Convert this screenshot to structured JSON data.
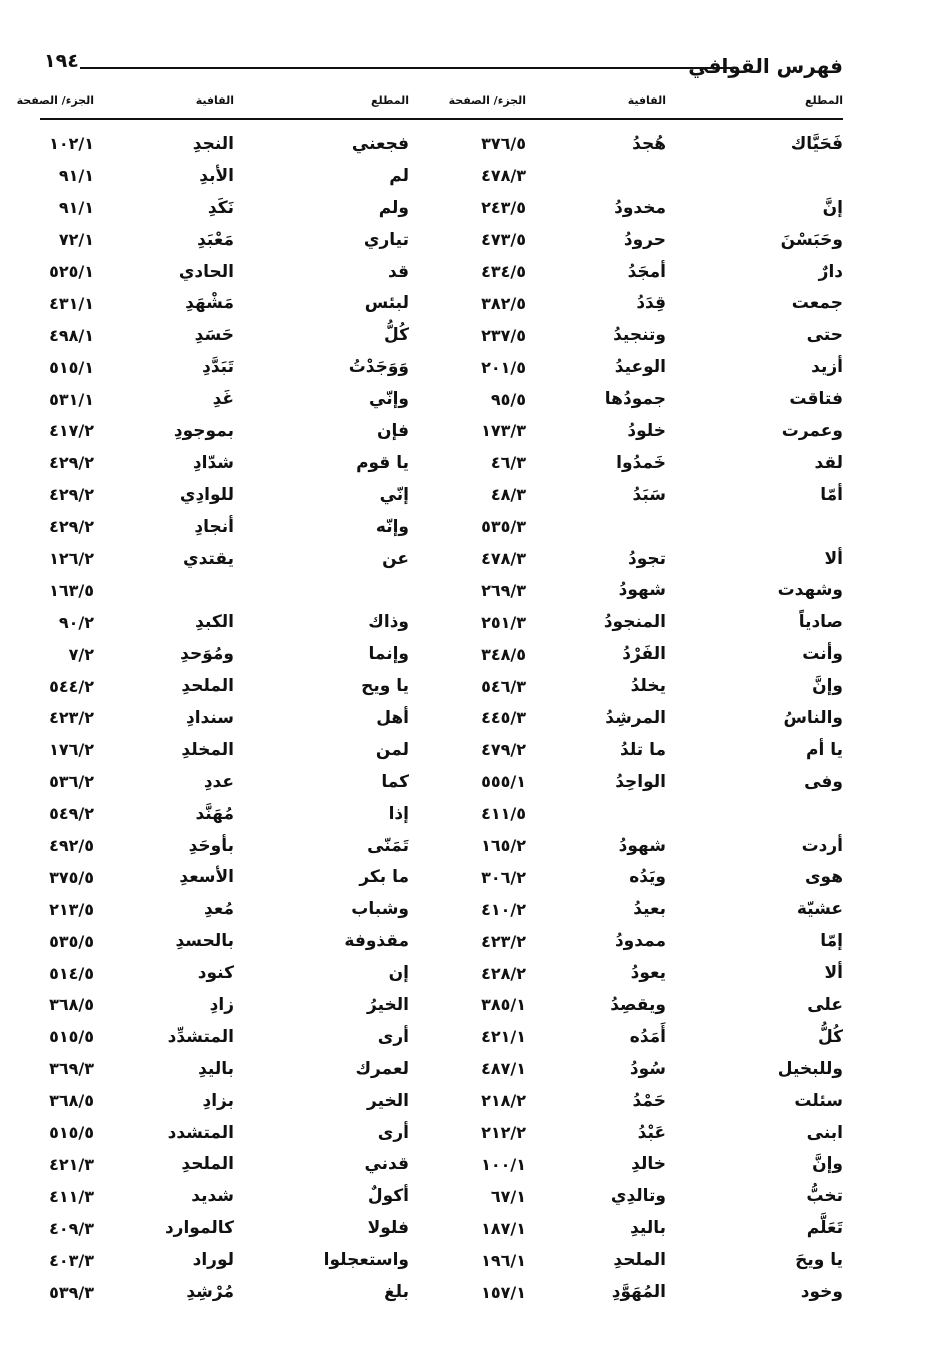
{
  "header": {
    "title": "فهرس القوافي",
    "page_number": "١٩٤"
  },
  "columns": [
    "المطلع",
    "القافية",
    "الجزء/ الصفحة",
    "المطلع",
    "القافية",
    "الجزء/ الصفحة"
  ],
  "rows": [
    [
      "فَحَيَّاك",
      "هُجدُ",
      "٣٧٦/٥",
      "فجعني",
      "النجدِ",
      "١٠٢/١"
    ],
    [
      "",
      "",
      "٤٧٨/٣",
      "لم",
      "الأبدِ",
      "٩١/١"
    ],
    [
      "إنَّ",
      "مخدودُ",
      "٢٤٣/٥",
      "ولم",
      "نَكَدِ",
      "٩١/١"
    ],
    [
      "وحَبَسْنَ",
      "حرودُ",
      "٤٧٣/٥",
      "تياري",
      "مَعْبَدِ",
      "٧٢/١"
    ],
    [
      "دارٌ",
      "أمجَدُ",
      "٤٣٤/٥",
      "قد",
      "الحادي",
      "٥٢٥/١"
    ],
    [
      "جمعت",
      "قِدَدُ",
      "٣٨٢/٥",
      "لبئس",
      "مَشْهَدِ",
      "٤٣١/١"
    ],
    [
      "حتى",
      "وتنجيدُ",
      "٢٣٧/٥",
      "كُلُّ",
      "حَسَدِ",
      "٤٩٨/١"
    ],
    [
      "أزيد",
      "الوعيدُ",
      "٢٠١/٥",
      "وَوَجَدْتُ",
      "تَبَدَّدِ",
      "٥١٥/١"
    ],
    [
      "فتاقت",
      "جمودُها",
      "٩٥/٥",
      "وإنّي",
      "غَدِ",
      "٥٣١/١"
    ],
    [
      "وعمرت",
      "خلودُ",
      "١٧٣/٣",
      "فإن",
      "بموجودِ",
      "٤١٧/٢"
    ],
    [
      "لقد",
      "خَمدُوا",
      "٤٦/٣",
      "يا قوم",
      "شدّادِ",
      "٤٢٩/٢"
    ],
    [
      "أمّا",
      "سَبَدُ",
      "٤٨/٣",
      "إنّي",
      "للوادِي",
      "٤٢٩/٢"
    ],
    [
      "",
      "",
      "٥٣٥/٣",
      "وإنّه",
      "أنجادِ",
      "٤٢٩/٢"
    ],
    [
      "ألا",
      "تجودُ",
      "٤٧٨/٣",
      "عن",
      "يقتدي",
      "١٢٦/٢"
    ],
    [
      "وشهدت",
      "شهودُ",
      "٢٦٩/٣",
      "",
      "",
      "١٦٣/٥"
    ],
    [
      "صادياً",
      "المنجودُ",
      "٢٥١/٣",
      "وذاك",
      "الكبدِ",
      "٩٠/٢"
    ],
    [
      "وأنت",
      "الفَرْدُ",
      "٣٤٨/٥",
      "وإنما",
      "ومُوَحدِ",
      "٧/٢"
    ],
    [
      "وإنَّ",
      "يخلدُ",
      "٥٤٦/٣",
      "يا ويح",
      "الملحدِ",
      "٥٤٤/٢"
    ],
    [
      "والناسُ",
      "المرشِدُ",
      "٤٤٥/٣",
      "أهل",
      "سندادِ",
      "٤٢٣/٢"
    ],
    [
      "يا أم",
      "ما تلدُ",
      "٤٧٩/٢",
      "لمن",
      "المخلدِ",
      "١٧٦/٢"
    ],
    [
      "وفى",
      "الواحِدُ",
      "٥٥٥/١",
      "كما",
      "عددِ",
      "٥٣٦/٢"
    ],
    [
      "",
      "",
      "٤١١/٥",
      "إذا",
      "مُهَنَّد",
      "٥٤٩/٢"
    ],
    [
      "أردت",
      "شهودُ",
      "١٦٥/٢",
      "تَمَنّى",
      "بأوحَدِ",
      "٤٩٢/٥"
    ],
    [
      "هوى",
      "ويَدُه",
      "٣٠٦/٢",
      "ما بكر",
      "الأسعدِ",
      "٣٧٥/٥"
    ],
    [
      "عشيّة",
      "بعيدُ",
      "٤١٠/٢",
      "وشباب",
      "مُعدِ",
      "٢١٣/٥"
    ],
    [
      "إمّا",
      "ممدودُ",
      "٤٢٣/٢",
      "مقذوفة",
      "بالحسدِ",
      "٥٣٥/٥"
    ],
    [
      "ألا",
      "يعودُ",
      "٤٢٨/٢",
      "إن",
      "كنود",
      "٥١٤/٥"
    ],
    [
      "على",
      "ويقصِدُ",
      "٣٨٥/١",
      "الخيرُ",
      "زادِ",
      "٣٦٨/٥"
    ],
    [
      "كُلُّ",
      "أَمَدُه",
      "٤٢١/١",
      "أرى",
      "المتشدِّد",
      "٥١٥/٥"
    ],
    [
      "وللبخيل",
      "سُودُ",
      "٤٨٧/١",
      "لعمرك",
      "باليدِ",
      "٣٦٩/٣"
    ],
    [
      "سئلت",
      "حَمْدُ",
      "٢١٨/٢",
      "الخير",
      "بزادِ",
      "٣٦٨/٥"
    ],
    [
      "ابنى",
      "عَبْدُ",
      "٢١٢/٢",
      "أرى",
      "المتشدد",
      "٥١٥/٥"
    ],
    [
      "وإنَّ",
      "خالدِ",
      "١٠٠/١",
      "قدني",
      "الملحدِ",
      "٤٢١/٣"
    ],
    [
      "تخبُّ",
      "وتالدِي",
      "٦٧/١",
      "أكولٌ",
      "شديد",
      "٤١١/٣"
    ],
    [
      "تَعَلَّم",
      "باليدِ",
      "١٨٧/١",
      "فلولا",
      "كالموارد",
      "٤٠٩/٣"
    ],
    [
      "يا ويحَ",
      "الملحدِ",
      "١٩٦/١",
      "واستعجلوا",
      "لوراد",
      "٤٠٣/٣"
    ],
    [
      "وخود",
      "المُهَوَّدِ",
      "١٥٧/١",
      "بلغ",
      "مُرْشِدِ",
      "٥٣٩/٣"
    ]
  ]
}
